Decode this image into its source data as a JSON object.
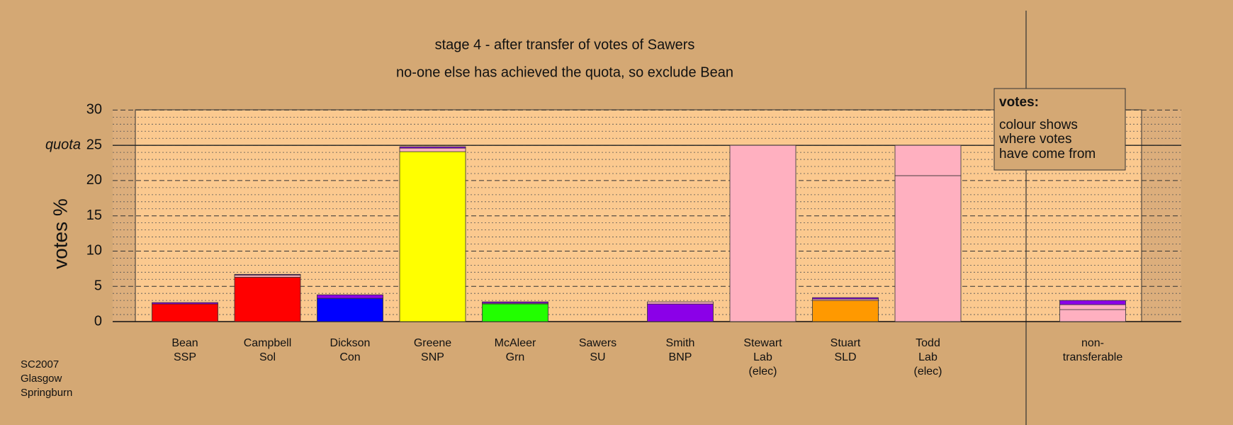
{
  "chart_data": {
    "type": "stacked-bar",
    "title": "stage 4 - after transfer of votes of Sawers",
    "subtitle": "no-one else has achieved the quota, so exclude Bean",
    "y_label": "votes %",
    "quota_label": "quota",
    "quota": 25,
    "ylim": [
      0,
      30
    ],
    "yticks": [
      0,
      5,
      10,
      15,
      20,
      25,
      30
    ],
    "minor_yticks": [
      1,
      2,
      3,
      4,
      6,
      7,
      8,
      9,
      11,
      12,
      13,
      14,
      16,
      17,
      18,
      19,
      21,
      22,
      23,
      24,
      26,
      27,
      28,
      29
    ],
    "categories": [
      [
        "Bean",
        "SSP"
      ],
      [
        "Campbell",
        "Sol"
      ],
      [
        "Dickson",
        "Con"
      ],
      [
        "Greene",
        "SNP"
      ],
      [
        "McAleer",
        "Grn"
      ],
      [
        "Sawers",
        "SU"
      ],
      [
        "Smith",
        "BNP"
      ],
      [
        "Stewart",
        "Lab",
        "(elec)"
      ],
      [
        "Stuart",
        "SLD"
      ],
      [
        "Todd",
        "Lab",
        "(elec)"
      ],
      [
        "non-",
        "transferable"
      ]
    ],
    "segments": [
      [
        {
          "value": 2.5,
          "color": "#ff0000"
        },
        {
          "value": 0.2,
          "color": "#8b00e8"
        }
      ],
      [
        {
          "value": 6.3,
          "color": "#ff0000"
        },
        {
          "value": 0.3,
          "color": "#ffb0c0"
        },
        {
          "value": 0.1,
          "color": "#8b00e8"
        }
      ],
      [
        {
          "value": 3.3,
          "color": "#0000ff"
        },
        {
          "value": 0.5,
          "color": "#8b00e8"
        }
      ],
      [
        {
          "value": 24.1,
          "color": "#ffff00"
        },
        {
          "value": 0.5,
          "color": "#ffb0c0"
        },
        {
          "value": 0.2,
          "color": "#8b00e8"
        }
      ],
      [
        {
          "value": 2.5,
          "color": "#22ff00"
        },
        {
          "value": 0.1,
          "color": "#ffb0c0"
        },
        {
          "value": 0.2,
          "color": "#8b00e8"
        }
      ],
      [],
      [
        {
          "value": 2.5,
          "color": "#8b00e8"
        },
        {
          "value": 0.3,
          "color": "#ffb0c0"
        }
      ],
      [
        {
          "value": 25,
          "color": "#ffb0c0"
        }
      ],
      [
        {
          "value": 3.0,
          "color": "#ff9900"
        },
        {
          "value": 0.2,
          "color": "#ffb0c0"
        },
        {
          "value": 0.2,
          "color": "#8b00e8"
        }
      ],
      [
        {
          "value": 20.7,
          "color": "#ffb0c0"
        },
        {
          "value": 4.3,
          "color": "#ffb0c0"
        }
      ],
      [
        {
          "value": 1.7,
          "color": "#ffb0c0"
        },
        {
          "value": 0.7,
          "color": "#ffb0c0"
        },
        {
          "value": 0.6,
          "color": "#8b00e8"
        }
      ]
    ],
    "legend": {
      "title": "votes:",
      "lines": [
        "colour shows",
        "where votes",
        "have come from"
      ]
    },
    "note": [
      "SC2007",
      "Glasgow",
      "Springburn"
    ]
  }
}
